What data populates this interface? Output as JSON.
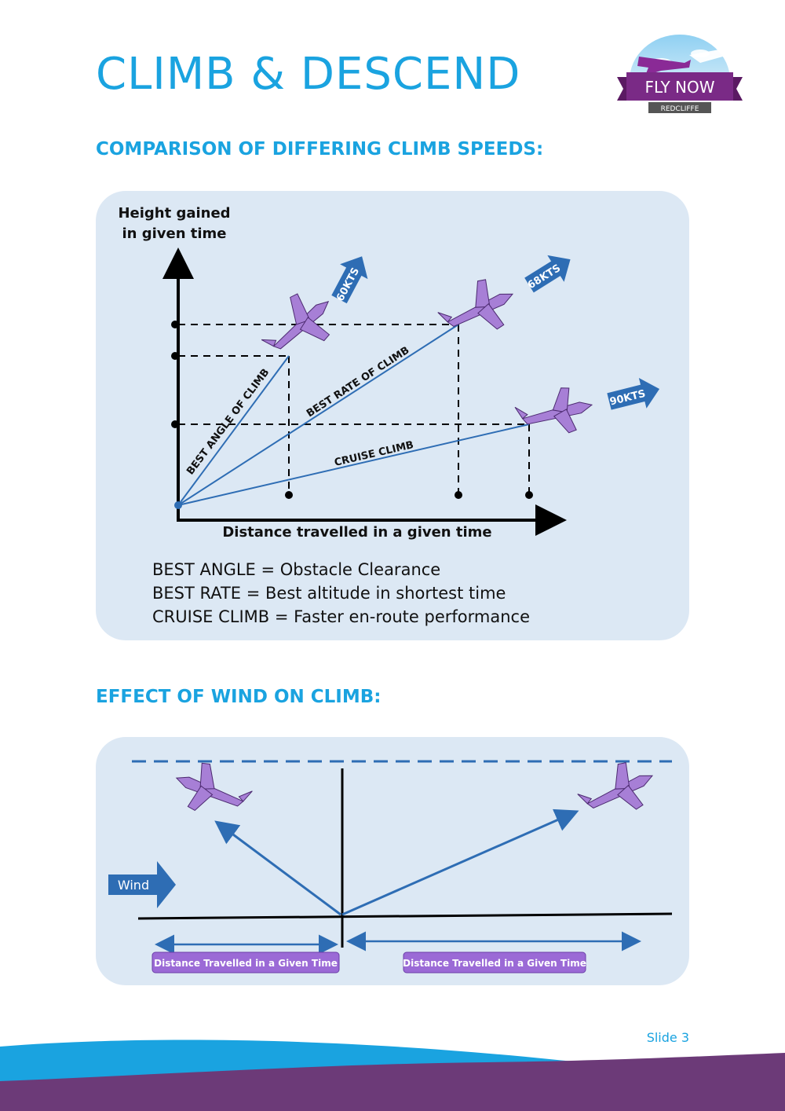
{
  "header": {
    "title": "CLIMB & DESCEND",
    "logo": {
      "line1": "FLY NOW",
      "line2": "REDCLIFFE"
    }
  },
  "section1": {
    "heading": "COMPARISON OF DIFFERING CLIMB SPEEDS:",
    "diagram": {
      "y_axis_label_line1": "Height gained",
      "y_axis_label_line2": "in given time",
      "x_axis_label": "Distance travelled in a given time",
      "lines": {
        "best_angle": "BEST ANGLE OF CLIMB",
        "best_rate": "BEST RATE OF CLIMB",
        "cruise": "CRUISE CLIMB"
      },
      "speeds": {
        "best_angle": "60KTS",
        "best_rate": "68KTS",
        "cruise": "90KTS"
      }
    },
    "legend": [
      "BEST ANGLE = Obstacle Clearance",
      "BEST RATE = Best altitude in shortest time",
      "CRUISE CLIMB = Faster en-route performance"
    ]
  },
  "section2": {
    "heading": "EFFECT OF WIND ON CLIMB:",
    "wind_label": "Wind",
    "distance_left": "Distance Travelled in a Given Time",
    "distance_right": "Distance Travelled in a Given Time"
  },
  "footer": {
    "slide": "Slide 3"
  },
  "colors": {
    "accent": "#1aa3e0",
    "panel": "#dce8f4",
    "line_blue": "#2e6db4",
    "purple": "#9b6ad6",
    "footer_purple": "#6c3a78"
  }
}
